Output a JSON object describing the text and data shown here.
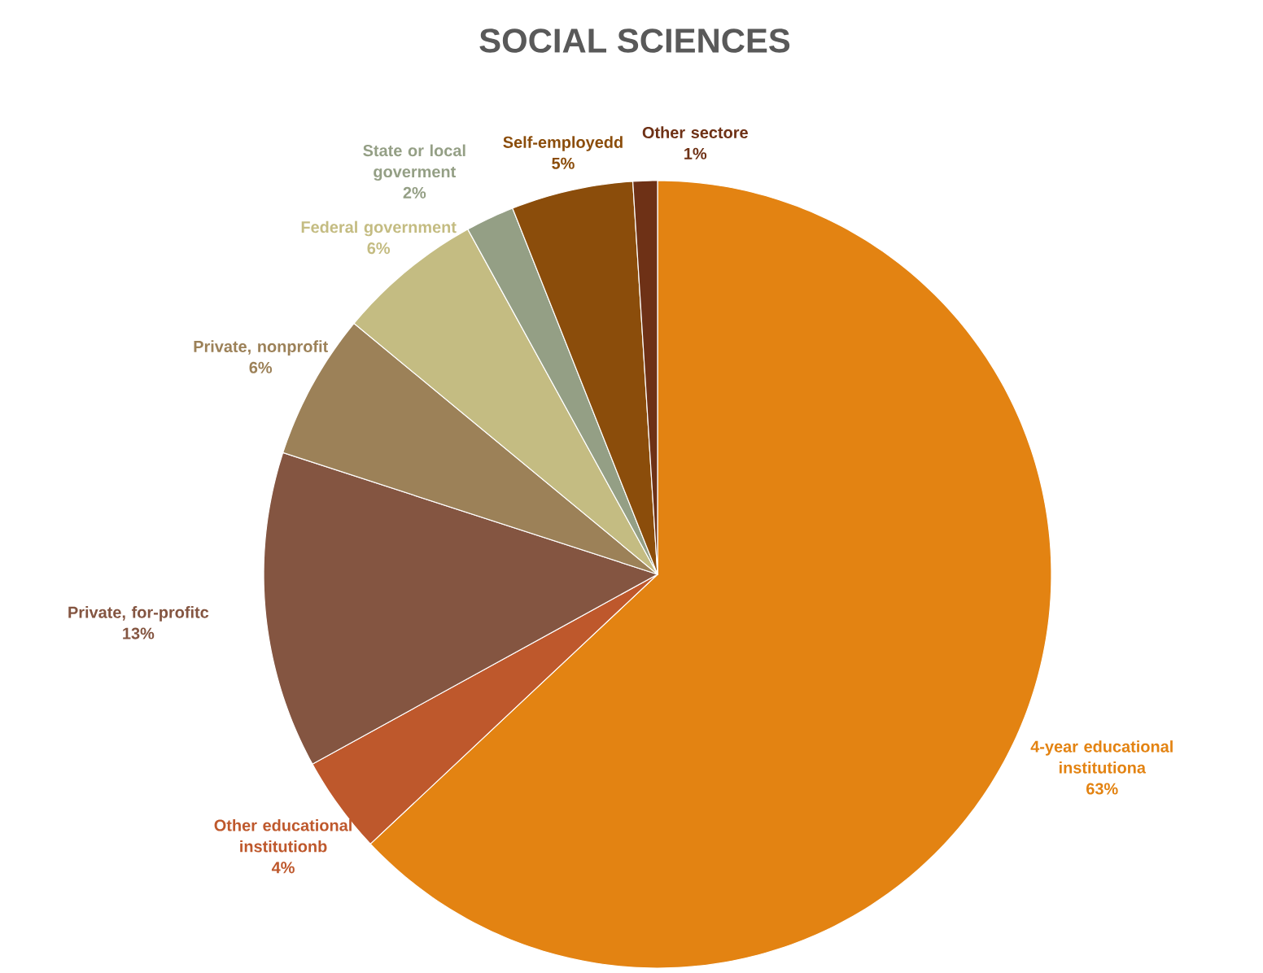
{
  "chart_data": {
    "type": "pie",
    "title": "SOCIAL SCIENCES",
    "categories": [
      "4-year educational institutiona",
      "Other educational institutionb",
      "Private, for-profitc",
      "Private, nonprofit",
      "Federal government",
      "State or local goverment",
      "Self-employedd",
      "Other sectore"
    ],
    "values": [
      63,
      4,
      13,
      6,
      6,
      2,
      5,
      1
    ],
    "value_labels": [
      "63%",
      "4%",
      "13%",
      "6%",
      "6%",
      "2%",
      "5%",
      "1%"
    ],
    "colors": [
      "#e38312",
      "#be582c",
      "#845541",
      "#9c8158",
      "#c4bc82",
      "#949f85",
      "#8b4d0b",
      "#6e3116"
    ]
  }
}
